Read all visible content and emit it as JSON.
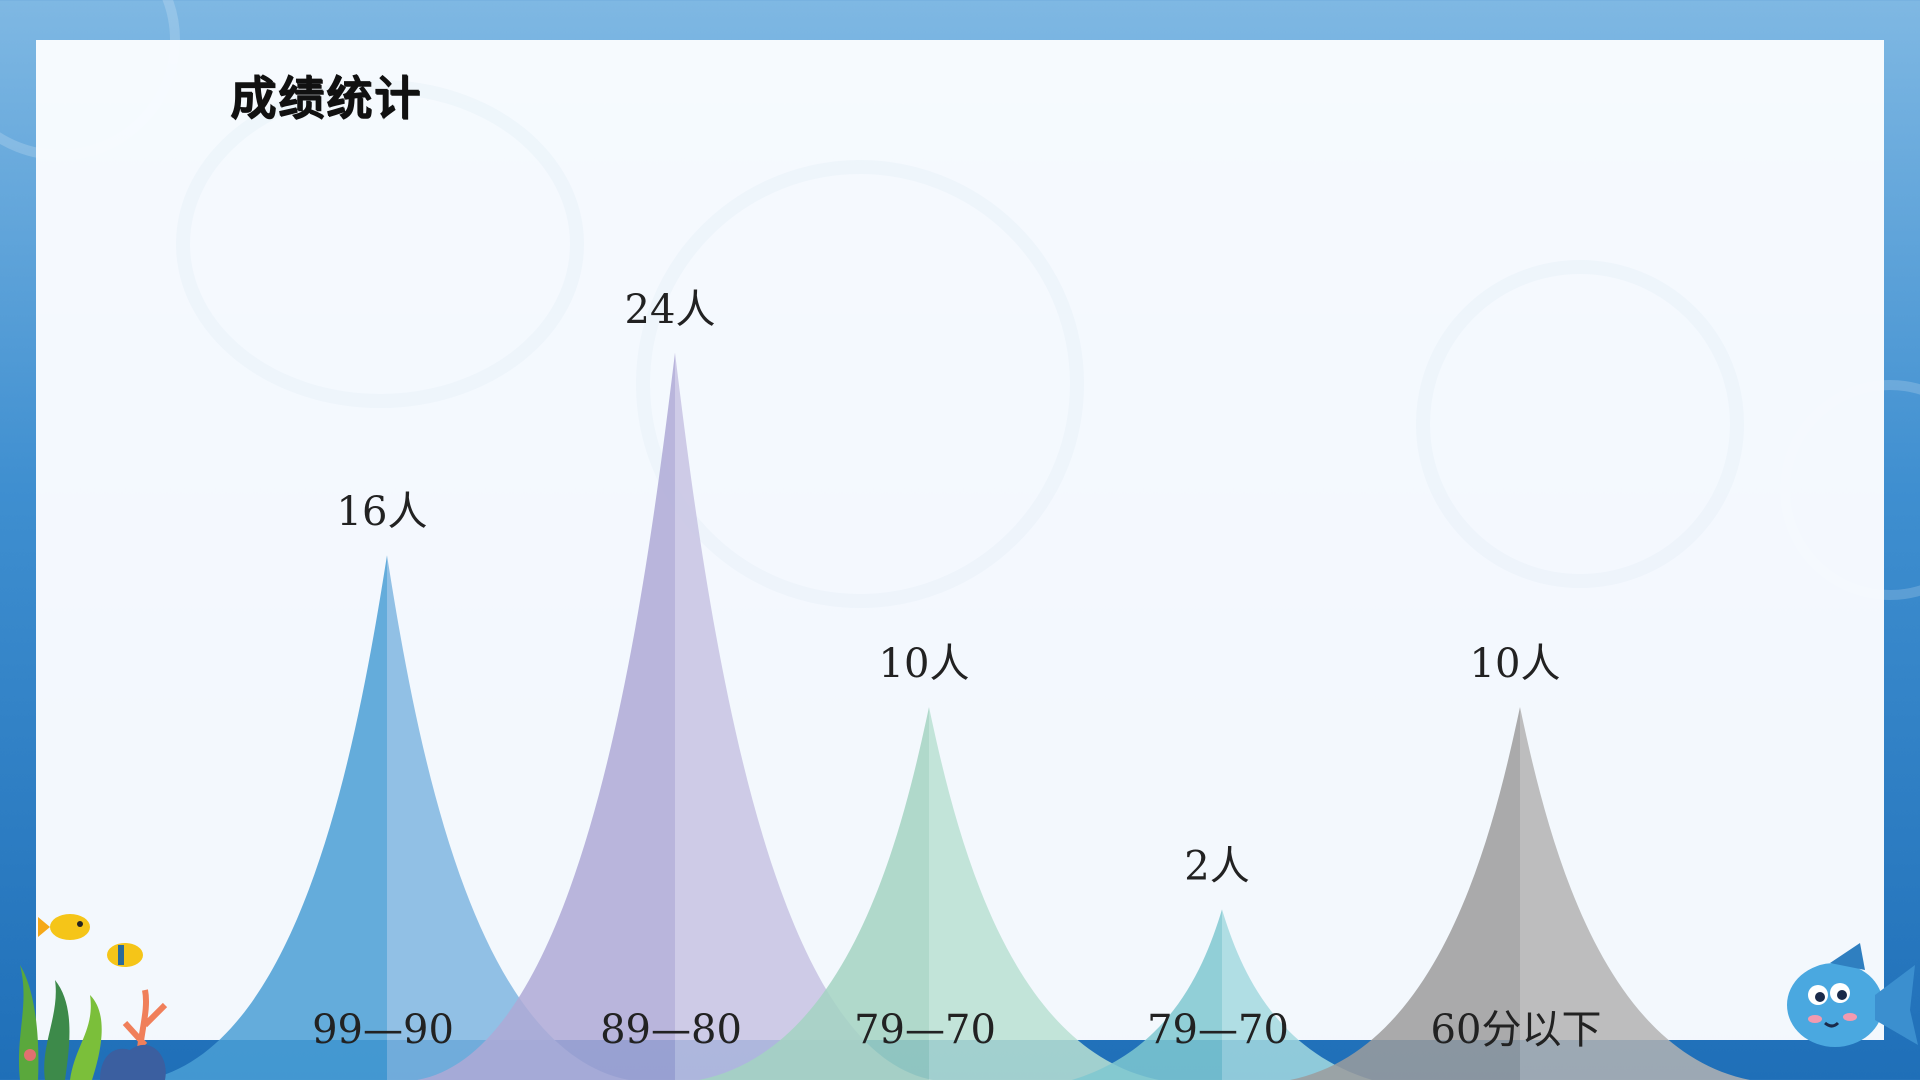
{
  "slide": {
    "title": "成绩统计"
  },
  "chart_data": {
    "type": "bar",
    "title": "成绩统计",
    "categories": [
      "99—90",
      "89—80",
      "79—70",
      "79—70",
      "60分以下"
    ],
    "values": [
      16,
      24,
      10,
      2,
      10
    ],
    "value_labels": [
      "16人",
      "24人",
      "10人",
      "2人",
      "10人"
    ],
    "xlabel": "",
    "ylabel": "",
    "grid": false,
    "legend": "none"
  },
  "colors": {
    "peak_left": [
      "#4a9fd5",
      "#aea9d6",
      "#a3d4c2",
      "#7fc8d0",
      "#9c9c9c"
    ],
    "peak_right": [
      "#7fb6e0",
      "#c7c3e3",
      "#b8e0d2",
      "#a3d9df",
      "#b3b3b3"
    ],
    "text": "#222222"
  },
  "decorations": {
    "left_corner": "coral-reef-with-yellow-fish-icon",
    "right_corner": "blue-cartoon-fish-icon"
  }
}
